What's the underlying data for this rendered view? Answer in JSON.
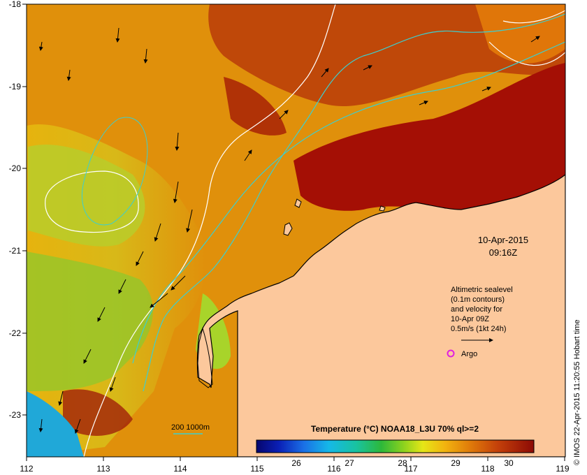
{
  "map": {
    "lon_ticks": [
      "112",
      "113",
      "114",
      "115",
      "116",
      "117",
      "118",
      "119"
    ],
    "lat_ticks": [
      "-18",
      "-19",
      "-20",
      "-21",
      "-22",
      "-23"
    ],
    "date": "10-Apr-2015",
    "time": "09:16Z",
    "altimetry_lines": [
      "Altimetric sealevel",
      "(0.1m contours)",
      "and velocity for",
      "10-Apr 09Z",
      "0.5m/s (1kt 24h)"
    ],
    "argo_label": "Argo",
    "bathy_label": "200  1000m",
    "colorbar_title": "Temperature (°C) NOAA18_L3U 70% ql>=2",
    "colorbar_ticks": [
      "26",
      "27",
      "28",
      "29",
      "30"
    ],
    "credit": "© IMOS 22-Apr-2015 11:20:55 Hobart time",
    "colors": {
      "land": "#fcc89c",
      "hot": "#a50f05",
      "warm": "#e08a0a",
      "contour_cyan": "#3ccfcf",
      "argo": "#e020e0"
    }
  }
}
